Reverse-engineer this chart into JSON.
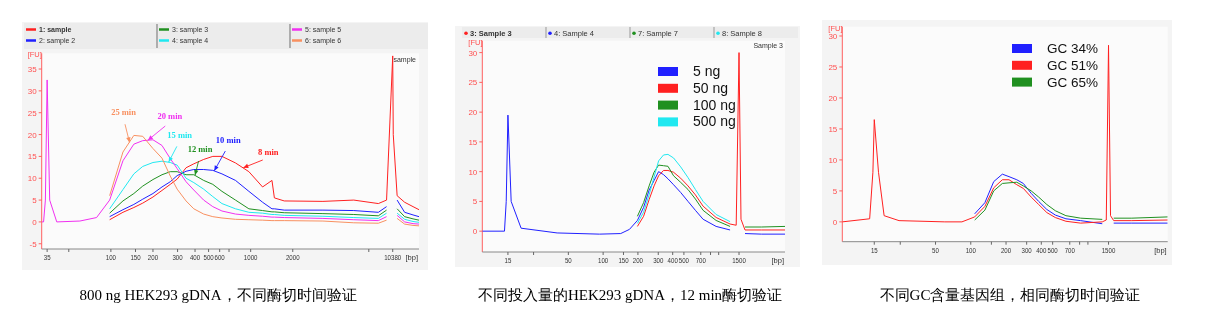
{
  "chart_data": [
    {
      "type": "line",
      "xlabel": "[bp]",
      "ylabel": "[FU]",
      "legend": "top",
      "log": "x",
      "xlim": [
        32,
        16000
      ],
      "ylim": [
        -6.2,
        38.6
      ],
      "xticks": [
        35,
        {
          "value": 50,
          "label": null
        },
        100,
        150,
        200,
        300,
        400,
        500,
        600,
        {
          "value": 700,
          "label": null
        },
        1000,
        2000,
        {
          "value": 7000,
          "label": null
        },
        10380
      ],
      "yticks": [
        -5,
        0,
        5,
        10,
        15,
        20,
        25,
        30,
        35
      ],
      "x": [
        32,
        33,
        34,
        35,
        36.5,
        41,
        60,
        79,
        98,
        122,
        146,
        169,
        200,
        232,
        266,
        298,
        345,
        392,
        461,
        536,
        623,
        779,
        971,
        1217,
        1420,
        1478,
        1739,
        3287,
        5465,
        8188,
        9375,
        10380,
        10470,
        11160,
        12630,
        14500,
        16000
      ],
      "series": [
        {
          "name": "1: sample",
          "color": "#ff2020",
          "values": [
            null,
            null,
            null,
            null,
            null,
            null,
            null,
            null,
            0.5,
            2.2,
            3.3,
            4.3,
            5.7,
            7.2,
            8.6,
            9.8,
            12.4,
            13.3,
            14.3,
            15,
            15,
            13.5,
            11.5,
            8,
            9.5,
            5.5,
            4.8,
            4.7,
            5,
            4.2,
            5,
            38,
            20,
            6,
            4.5,
            3.5,
            2.8
          ]
        },
        {
          "name": "2: sample 2",
          "color": "#2020ff",
          "values": [
            null,
            null,
            null,
            null,
            null,
            null,
            null,
            null,
            1.2,
            2.8,
            4,
            5.2,
            6.5,
            8,
            9.2,
            10.6,
            11.6,
            12,
            12,
            11.8,
            11,
            9.5,
            7,
            4.5,
            3,
            3,
            2.7,
            2.7,
            2.6,
            2.2,
            3.5,
            null,
            null,
            5,
            2.2,
            1.6,
            1.2
          ]
        },
        {
          "name": "3: sample 3",
          "color": "#209020",
          "values": [
            null,
            null,
            null,
            null,
            null,
            null,
            null,
            null,
            2,
            4.8,
            6.5,
            8.2,
            9.7,
            10.8,
            11.5,
            11.5,
            10.8,
            10.8,
            9.5,
            8.6,
            7,
            5,
            3.0,
            2.6,
            2.3,
            2.3,
            2.1,
            1.9,
            1.7,
            1.4,
            2.7,
            null,
            null,
            3,
            1.2,
            0.7,
            0.4
          ]
        },
        {
          "name": "4: sample 4",
          "color": "#20e8f0",
          "values": [
            null,
            null,
            null,
            null,
            null,
            null,
            null,
            null,
            3,
            7.4,
            11,
            12.7,
            13.6,
            13.9,
            13.6,
            13.0,
            10.0,
            9,
            7.5,
            5.8,
            4.2,
            3,
            2.2,
            2.0,
            1.7,
            1.7,
            1.5,
            1.3,
            1.0,
            0.8,
            2,
            null,
            null,
            2,
            0.6,
            0.1,
            -0.1
          ]
        },
        {
          "name": "5: sample 5",
          "color": "#f030f0",
          "values": [
            0,
            0,
            5,
            32.5,
            5,
            0,
            0.2,
            1,
            5,
            14,
            17.8,
            18.6,
            18.8,
            17.5,
            14.5,
            12.2,
            9.2,
            7.3,
            5,
            3.5,
            2.5,
            1.8,
            1.5,
            1.3,
            1.1,
            1.1,
            1.0,
            0.8,
            0.5,
            0.3,
            1.2,
            null,
            null,
            1.5,
            0,
            -0.4,
            -0.5
          ]
        },
        {
          "name": "6: sample 6",
          "color": "#f89060",
          "values": [
            null,
            null,
            null,
            null,
            null,
            null,
            null,
            null,
            6,
            16,
            19.8,
            19.6,
            16.8,
            14.6,
            10.5,
            7.5,
            4.8,
            3,
            1.8,
            1.2,
            0.9,
            0.6,
            0.5,
            0.4,
            0.3,
            0.3,
            0.3,
            0.2,
            -0.2,
            -0.3,
            0.4,
            null,
            null,
            0.8,
            -0.5,
            -0.8,
            -0.9
          ]
        }
      ],
      "annotations": [
        "800 ng HEK293 gDNA，不同酶切时间验证",
        "sample",
        {
          "text": "25 min",
          "x": 136,
          "y": 18.2
        },
        {
          "text": "20 min",
          "x": 184,
          "y": 18.7
        },
        {
          "text": "15 min",
          "x": 259,
          "y": 13.7
        },
        {
          "text": "12 min",
          "x": 400,
          "y": 10.7
        },
        {
          "text": "10 min",
          "x": 549,
          "y": 11.7
        },
        {
          "text": "8 min",
          "x": 886,
          "y": 12.4
        }
      ]
    },
    {
      "type": "line",
      "xlabel": "[bp]",
      "ylabel": "[FU]",
      "legend": "top right",
      "log": "x",
      "xlim": [
        9,
        3750
      ],
      "ylim": [
        -3.5,
        32
      ],
      "xticks": [
        15,
        {
          "value": 25,
          "label": null
        },
        50,
        100,
        150,
        200,
        300,
        400,
        500,
        700,
        {
          "value": 850,
          "label": null
        },
        {
          "value": 1000,
          "label": null
        },
        1500
      ],
      "yticks": [
        0,
        5,
        10,
        15,
        20,
        25,
        30
      ],
      "x": [
        9,
        14,
        14.5,
        15,
        16,
        19.5,
        40,
        93,
        142,
        169,
        198,
        224,
        250,
        276,
        302,
        333,
        364,
        407,
        469,
        543,
        629,
        733,
        950,
        1255,
        1418,
        1500,
        1560,
        1690,
        2350,
        3750
      ],
      "series": [
        {
          "name": "5 ng",
          "color": "#2020ff",
          "values": [
            0,
            0,
            5,
            19.5,
            5,
            0.5,
            -0.3,
            -0.5,
            -0.4,
            0.3,
            1.8,
            4.0,
            6.9,
            8.5,
            10.0,
            9.5,
            8.8,
            7.8,
            6.5,
            5,
            3.5,
            2,
            0.8,
            0.2,
            null,
            null,
            null,
            -0.4,
            -0.5,
            -0.5
          ]
        },
        {
          "name": "50 ng",
          "color": "#ff2020",
          "values": [
            null,
            null,
            null,
            null,
            null,
            null,
            null,
            null,
            null,
            null,
            0.8,
            2.5,
            5.3,
            7.6,
            9.3,
            10.2,
            10.2,
            9.9,
            8.9,
            7.6,
            6.1,
            4.2,
            2.3,
            1.2,
            1,
            30,
            2,
            0.2,
            0.2,
            0.2
          ]
        },
        {
          "name": "100 ng",
          "color": "#209020",
          "values": [
            null,
            null,
            null,
            null,
            null,
            null,
            null,
            null,
            null,
            null,
            2.5,
            4.8,
            7.6,
            9.9,
            11.1,
            11,
            10.9,
            9.3,
            8.2,
            7,
            5.4,
            3.5,
            1.8,
            0.8,
            null,
            null,
            null,
            0.7,
            0.7,
            0.8
          ]
        },
        {
          "name": "500 ng",
          "color": "#20e8f0",
          "values": [
            null,
            null,
            null,
            null,
            null,
            null,
            null,
            null,
            null,
            null,
            1.3,
            3.2,
            6.1,
            9.1,
            11.8,
            12.8,
            12.9,
            12.3,
            10.8,
            9,
            7.0,
            5.0,
            2.8,
            1.6,
            null,
            null,
            null,
            null,
            null,
            null
          ]
        }
      ],
      "annotations": [
        "不同投入量的HEK293 gDNA，12 min酶切验证",
        "Sample 3",
        "3: Sample 3",
        "4: Sample 4",
        "7: Sample 7",
        "8: Sample 8"
      ]
    },
    {
      "type": "line",
      "xlabel": "[bp]",
      "ylabel": "[FU]",
      "legend": "top right",
      "log": "x",
      "xlim": [
        8,
        4800
      ],
      "ylim": [
        -3.2,
        31.5
      ],
      "xticks": [
        15,
        {
          "value": 25,
          "label": null
        },
        50,
        100,
        {
          "value": 150,
          "label": null
        },
        200,
        300,
        400,
        500,
        700,
        {
          "value": 850,
          "label": null
        },
        {
          "value": 1000,
          "label": null
        },
        1500
      ],
      "yticks": [
        0,
        5,
        10,
        15,
        20,
        25,
        30
      ],
      "x": [
        8,
        13.7,
        14.6,
        15,
        16.3,
        18.2,
        24.4,
        60,
        84,
        108,
        132,
        157,
        186,
        212,
        247,
        281,
        328,
        380,
        446,
        527,
        649,
        867,
        1326,
        1435,
        1500,
        1560,
        1660,
        2370,
        4800
      ],
      "series": [
        {
          "name": "GC 34%",
          "color": "#2020ff",
          "values": [
            null,
            null,
            null,
            null,
            null,
            null,
            null,
            null,
            null,
            1.3,
            3.1,
            6.5,
            7.7,
            7.3,
            6.8,
            6.2,
            4.6,
            3.3,
            2.0,
            1.1,
            0.5,
            0.2,
            -0.3,
            null,
            null,
            null,
            -0.2,
            -0.2,
            -0.2
          ]
        },
        {
          "name": "GC 51%",
          "color": "#ff2020",
          "values": [
            0,
            0.5,
            8,
            16.5,
            8,
            1,
            0.2,
            0,
            0,
            0.8,
            2.5,
            5.5,
            6.8,
            6.8,
            6.0,
            5.4,
            4.0,
            2.8,
            1.5,
            0.7,
            0.1,
            -0.2,
            0,
            0.3,
            28.5,
            1,
            0.2,
            0.2,
            0.3
          ]
        },
        {
          "name": "GC 65%",
          "color": "#209020",
          "values": [
            null,
            null,
            null,
            null,
            null,
            null,
            null,
            null,
            null,
            0.3,
            1.9,
            5.0,
            6.2,
            6.3,
            6.4,
            5.8,
            5.0,
            4.0,
            2.8,
            1.8,
            1.0,
            0.6,
            0.4,
            null,
            null,
            null,
            0.6,
            0.6,
            0.8
          ]
        }
      ],
      "annotations": [
        "不同GC含量基因组，相同酶切时间验证"
      ]
    }
  ]
}
